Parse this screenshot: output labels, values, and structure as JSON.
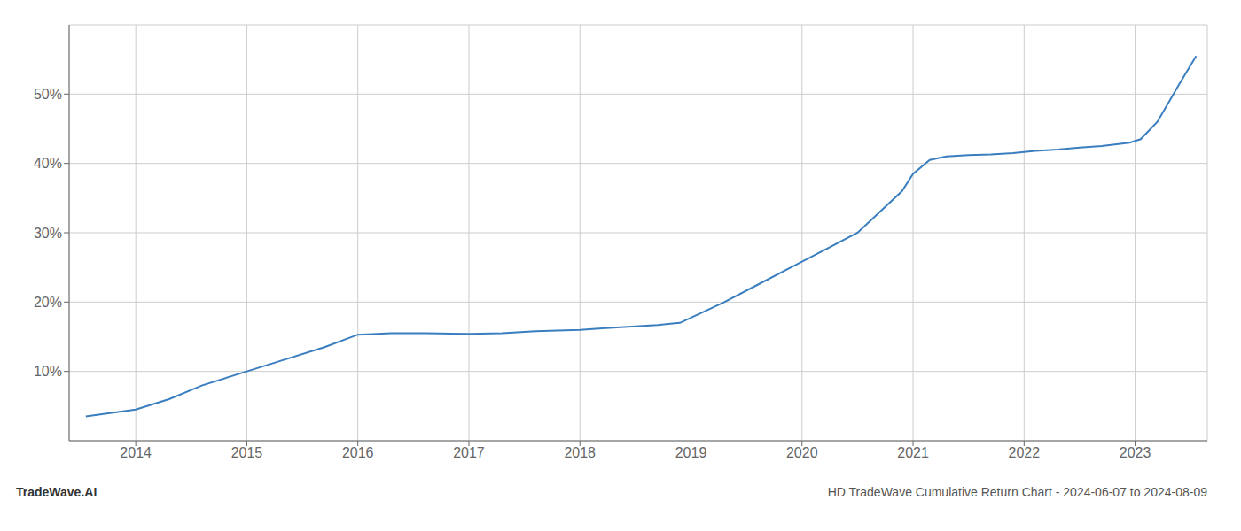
{
  "chart_data": {
    "type": "line",
    "title": "HD TradeWave Cumulative Return Chart - 2024-06-07 to 2024-08-09",
    "annotations": [
      "TradeWave.AI"
    ],
    "x": [
      2013.55,
      2014.0,
      2014.3,
      2014.6,
      2015.0,
      2015.3,
      2015.7,
      2016.0,
      2016.3,
      2016.6,
      2017.0,
      2017.3,
      2017.6,
      2018.0,
      2018.2,
      2018.5,
      2018.7,
      2018.9,
      2019.1,
      2019.3,
      2019.6,
      2019.9,
      2020.2,
      2020.5,
      2020.7,
      2020.9,
      2021.0,
      2021.15,
      2021.3,
      2021.5,
      2021.7,
      2021.9,
      2022.1,
      2022.3,
      2022.5,
      2022.7,
      2022.85,
      2022.95,
      2023.05,
      2023.2,
      2023.4,
      2023.55
    ],
    "values": [
      3.5,
      4.5,
      6.0,
      8.0,
      10.0,
      11.5,
      13.5,
      15.3,
      15.5,
      15.5,
      15.4,
      15.5,
      15.8,
      16.0,
      16.2,
      16.5,
      16.7,
      17.0,
      18.5,
      20.0,
      22.5,
      25.0,
      27.5,
      30.0,
      33.0,
      36.0,
      38.5,
      40.5,
      41.0,
      41.2,
      41.3,
      41.5,
      41.8,
      42.0,
      42.3,
      42.5,
      42.8,
      43.0,
      43.5,
      46.0,
      51.5,
      55.5
    ],
    "color": "#3a7ebf",
    "xlim": [
      2013.4,
      2023.65
    ],
    "xticks": [
      2014,
      2015,
      2016,
      2017,
      2018,
      2019,
      2020,
      2021,
      2022,
      2023
    ],
    "ylim": [
      0,
      60
    ],
    "yticks": [
      {
        "value": 10,
        "label": "10%"
      },
      {
        "value": 20,
        "label": "20%"
      },
      {
        "value": 30,
        "label": "30%"
      },
      {
        "value": 40,
        "label": "40%"
      },
      {
        "value": 50,
        "label": "50%"
      }
    ],
    "grid": true
  }
}
